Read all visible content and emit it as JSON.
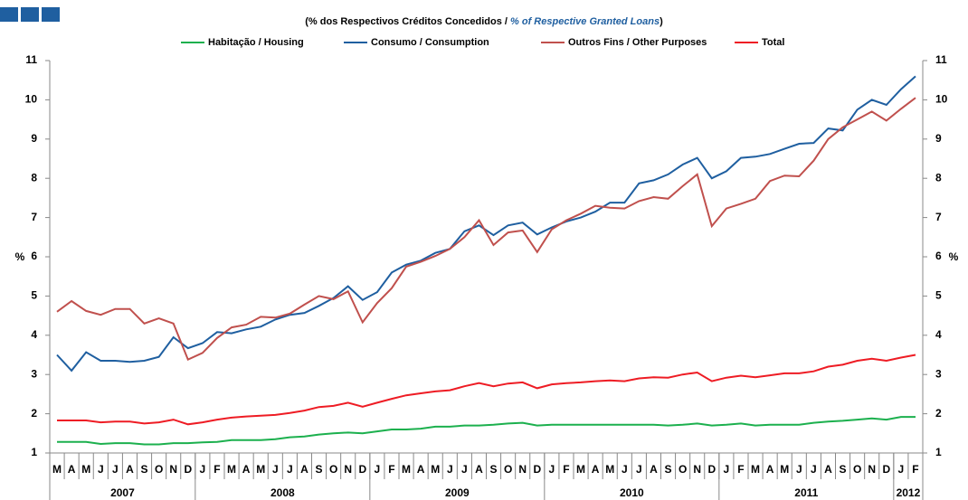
{
  "chart_data": {
    "type": "line",
    "subtitle": {
      "pt": "(% dos Respectivos  Créditos Concedidos  / ",
      "en": "% of Respective Granted Loans",
      "close": ")"
    },
    "ylabel": "%",
    "categories": [
      "M",
      "A",
      "M",
      "J",
      "J",
      "A",
      "S",
      "O",
      "N",
      "D",
      "J",
      "F",
      "M",
      "A",
      "M",
      "J",
      "J",
      "A",
      "S",
      "O",
      "N",
      "D",
      "J",
      "F",
      "M",
      "A",
      "M",
      "J",
      "J",
      "A",
      "S",
      "O",
      "N",
      "D",
      "J",
      "F",
      "M",
      "A",
      "M",
      "J",
      "J",
      "A",
      "S",
      "O",
      "N",
      "D",
      "J",
      "F",
      "M",
      "A",
      "M",
      "J",
      "J",
      "A",
      "S",
      "O",
      "N",
      "D",
      "J",
      "F"
    ],
    "years": [
      "2007",
      "2008",
      "2009",
      "2010",
      "2011",
      "2012"
    ],
    "ylim": [
      1,
      11
    ],
    "yticks": [
      1,
      2,
      3,
      4,
      5,
      6,
      7,
      8,
      9,
      10,
      11
    ],
    "series": [
      {
        "name": "Habitação / Housing",
        "color": "#1cb04e",
        "values": [
          1.28,
          1.28,
          1.28,
          1.23,
          1.25,
          1.25,
          1.22,
          1.22,
          1.25,
          1.25,
          1.27,
          1.28,
          1.33,
          1.33,
          1.33,
          1.35,
          1.4,
          1.42,
          1.47,
          1.5,
          1.52,
          1.5,
          1.55,
          1.6,
          1.6,
          1.62,
          1.67,
          1.67,
          1.7,
          1.7,
          1.72,
          1.75,
          1.77,
          1.7,
          1.72,
          1.72,
          1.72,
          1.72,
          1.72,
          1.72,
          1.72,
          1.72,
          1.7,
          1.72,
          1.75,
          1.7,
          1.72,
          1.75,
          1.7,
          1.72,
          1.72,
          1.72,
          1.77,
          1.8,
          1.82,
          1.85,
          1.88,
          1.85,
          1.92,
          1.92
        ]
      },
      {
        "name": "Consumo / Consumption",
        "color": "#1f5fa0",
        "values": [
          3.5,
          3.1,
          3.57,
          3.35,
          3.35,
          3.32,
          3.35,
          3.45,
          3.95,
          3.67,
          3.8,
          4.08,
          4.05,
          4.15,
          4.22,
          4.4,
          4.52,
          4.57,
          4.75,
          4.95,
          5.25,
          4.9,
          5.1,
          5.6,
          5.8,
          5.9,
          6.1,
          6.2,
          6.65,
          6.8,
          6.55,
          6.8,
          6.87,
          6.57,
          6.75,
          6.9,
          7.0,
          7.15,
          7.38,
          7.38,
          7.87,
          7.95,
          8.1,
          8.35,
          8.52,
          8.0,
          8.18,
          8.52,
          8.55,
          8.62,
          8.75,
          8.88,
          8.9,
          9.27,
          9.22,
          9.75,
          10.0,
          9.87,
          10.27,
          10.6
        ]
      },
      {
        "name": "Outros Fins / Other Purposes",
        "color": "#c0504d",
        "values": [
          4.6,
          4.87,
          4.62,
          4.52,
          4.67,
          4.67,
          4.3,
          4.43,
          4.3,
          3.38,
          3.55,
          3.93,
          4.2,
          4.27,
          4.47,
          4.45,
          4.55,
          4.78,
          5.0,
          4.92,
          5.12,
          4.33,
          4.82,
          5.2,
          5.75,
          5.87,
          6.02,
          6.2,
          6.5,
          6.93,
          6.3,
          6.62,
          6.67,
          6.12,
          6.7,
          6.93,
          7.1,
          7.3,
          7.25,
          7.23,
          7.42,
          7.52,
          7.48,
          7.8,
          8.1,
          6.78,
          7.23,
          7.35,
          7.48,
          7.93,
          8.07,
          8.05,
          8.45,
          9.0,
          9.3,
          9.5,
          9.7,
          9.47,
          9.77,
          10.05
        ]
      },
      {
        "name": "Total",
        "color": "#ee1c24",
        "values": [
          1.83,
          1.83,
          1.83,
          1.78,
          1.8,
          1.8,
          1.75,
          1.78,
          1.85,
          1.73,
          1.78,
          1.85,
          1.9,
          1.93,
          1.95,
          1.97,
          2.02,
          2.08,
          2.17,
          2.2,
          2.28,
          2.18,
          2.28,
          2.38,
          2.47,
          2.52,
          2.57,
          2.6,
          2.7,
          2.78,
          2.7,
          2.77,
          2.8,
          2.65,
          2.75,
          2.78,
          2.8,
          2.83,
          2.85,
          2.83,
          2.9,
          2.93,
          2.92,
          3.0,
          3.05,
          2.83,
          2.92,
          2.97,
          2.93,
          2.98,
          3.03,
          3.03,
          3.08,
          3.2,
          3.25,
          3.35,
          3.4,
          3.35,
          3.43,
          3.5
        ]
      }
    ]
  }
}
